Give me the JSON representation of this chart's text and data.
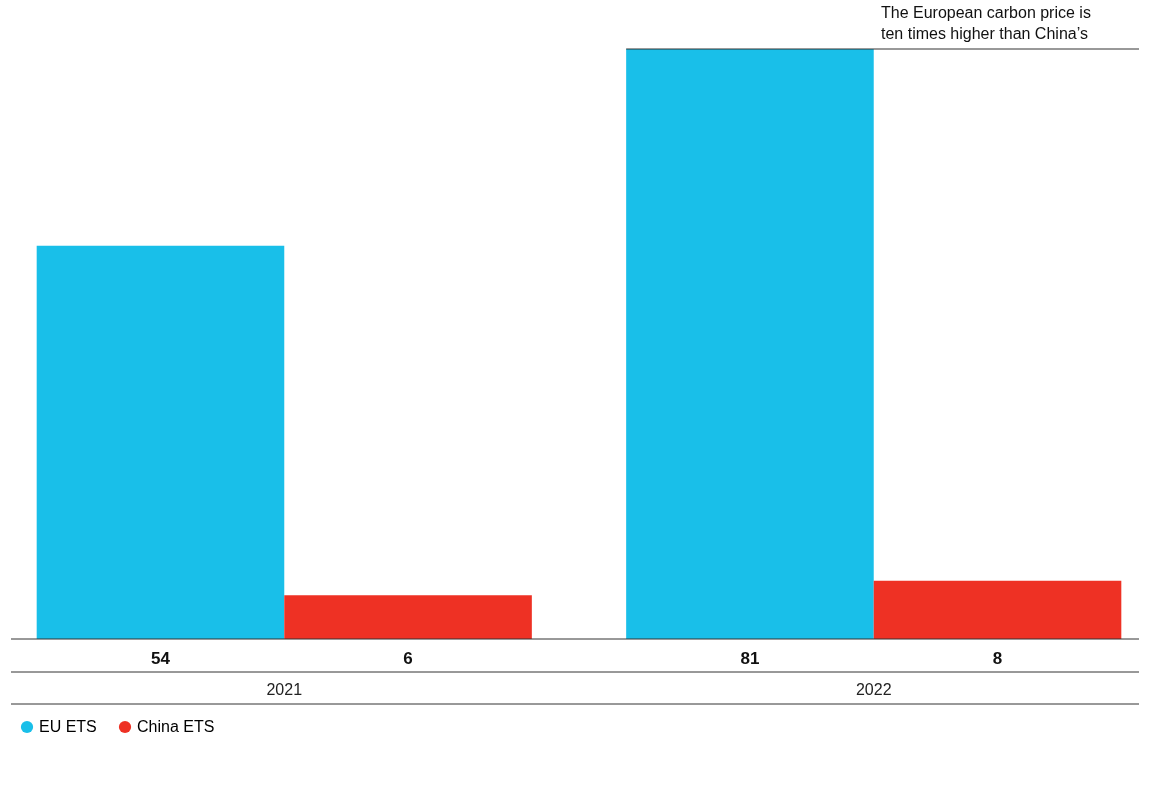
{
  "chart_data": {
    "type": "bar",
    "categories": [
      "2021",
      "2022"
    ],
    "series": [
      {
        "name": "EU ETS",
        "color": "#19bfe9",
        "values": [
          54,
          81
        ]
      },
      {
        "name": "China ETS",
        "color": "#ee3124",
        "values": [
          6,
          8
        ]
      }
    ],
    "data_labels": true,
    "legend": "bottom left",
    "grid": false,
    "annotations": [
      {
        "text": "The European carbon price is ten times higher than China’s",
        "x": "2022",
        "y": 81
      }
    ]
  }
}
